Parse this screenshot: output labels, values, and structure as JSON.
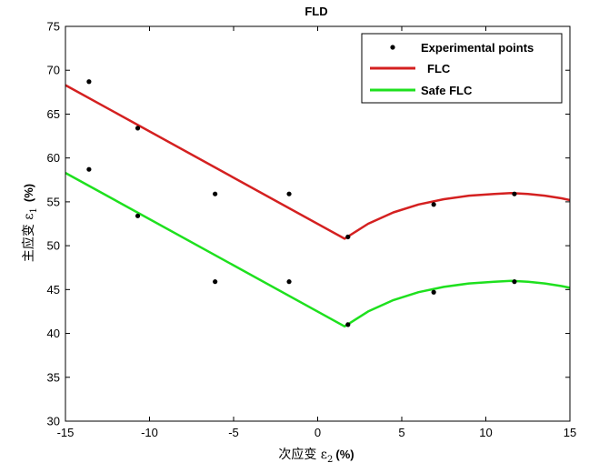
{
  "chart_data": {
    "type": "line",
    "title": "FLD",
    "xlabel": "次应变 ε",
    "xlabel_sub": "2",
    "xlabel_unit": "(%)",
    "ylabel": "主应变 ε",
    "ylabel_sub": "1",
    "ylabel_unit": "(%)",
    "xlim": [
      -15,
      15
    ],
    "ylim": [
      30,
      75
    ],
    "x_ticks": [
      "-15",
      "-10",
      "-5",
      "0",
      "5",
      "10",
      "15"
    ],
    "y_ticks": [
      "30",
      "35",
      "40",
      "45",
      "50",
      "55",
      "60",
      "65",
      "70",
      "75"
    ],
    "grid": false,
    "legend_position": "top-right",
    "legend": [
      "Experimental points",
      "FLC",
      "Safe FLC"
    ],
    "colors": {
      "points": "#000000",
      "flc": "#d42020",
      "safe_flc": "#1ee01e"
    },
    "series": [
      {
        "name": "Experimental points",
        "type": "scatter",
        "points": [
          [
            -13.6,
            68.7
          ],
          [
            -10.7,
            63.4
          ],
          [
            -6.1,
            55.9
          ],
          [
            -1.7,
            55.9
          ],
          [
            1.8,
            51.0
          ],
          [
            6.9,
            54.7
          ],
          [
            11.7,
            55.9
          ],
          [
            -13.6,
            58.7
          ],
          [
            -10.7,
            53.4
          ],
          [
            -6.1,
            45.9
          ],
          [
            -1.7,
            45.9
          ],
          [
            1.8,
            41.0
          ],
          [
            6.9,
            44.7
          ],
          [
            11.7,
            45.9
          ]
        ]
      },
      {
        "name": "FLC",
        "type": "line",
        "points": [
          [
            -15,
            68.3
          ],
          [
            1.6,
            50.8
          ],
          [
            3,
            52.5
          ],
          [
            4.5,
            53.8
          ],
          [
            6,
            54.7
          ],
          [
            7.5,
            55.3
          ],
          [
            9,
            55.7
          ],
          [
            10.5,
            55.9
          ],
          [
            11.5,
            56.0
          ],
          [
            12.5,
            55.9
          ],
          [
            13.5,
            55.7
          ],
          [
            14.5,
            55.4
          ],
          [
            15,
            55.2
          ]
        ]
      },
      {
        "name": "Safe FLC",
        "type": "line",
        "points": [
          [
            -15,
            58.3
          ],
          [
            1.6,
            40.8
          ],
          [
            3,
            42.5
          ],
          [
            4.5,
            43.8
          ],
          [
            6,
            44.7
          ],
          [
            7.5,
            45.3
          ],
          [
            9,
            45.7
          ],
          [
            10.5,
            45.9
          ],
          [
            11.5,
            46.0
          ],
          [
            12.5,
            45.9
          ],
          [
            13.5,
            45.7
          ],
          [
            14.5,
            45.4
          ],
          [
            15,
            45.2
          ]
        ]
      }
    ]
  }
}
